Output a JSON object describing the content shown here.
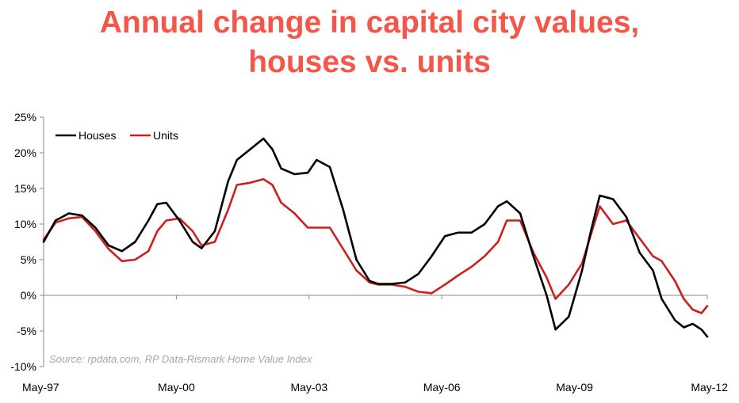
{
  "title_line1": "Annual change in capital city values,",
  "title_line2": "houses vs. units",
  "colors": {
    "title": "#f2574a",
    "houses": "#000000",
    "units": "#cc1f1f",
    "source": "#a6a6a6"
  },
  "chart_data": {
    "type": "line",
    "title": "Annual change in capital city values, houses vs. units",
    "xlabel": "",
    "ylabel": "",
    "y_ticks": [
      "25%",
      "20%",
      "15%",
      "10%",
      "5%",
      "0%",
      "-5%",
      "-10%"
    ],
    "x_ticks": [
      "May-97",
      "May-00",
      "May-03",
      "May-06",
      "May-09",
      "May-12"
    ],
    "ylim": [
      -10,
      25
    ],
    "xlim": [
      1997.33,
      2012.33
    ],
    "grid": false,
    "legend_position": "top-left",
    "source": "Source: rpdata.com, RP Data-Rismark Home Value Index",
    "series": [
      {
        "name": "Houses",
        "x": [
          1997.33,
          1997.6,
          1997.9,
          1998.2,
          1998.5,
          1998.8,
          1999.1,
          1999.4,
          1999.7,
          1999.9,
          2000.1,
          2000.4,
          2000.7,
          2000.9,
          2001.2,
          2001.5,
          2001.7,
          2002.0,
          2002.3,
          2002.5,
          2002.7,
          2003.0,
          2003.3,
          2003.5,
          2003.8,
          2004.1,
          2004.4,
          2004.7,
          2004.9,
          2005.2,
          2005.5,
          2005.8,
          2006.1,
          2006.4,
          2006.7,
          2007.0,
          2007.3,
          2007.6,
          2007.8,
          2008.1,
          2008.4,
          2008.7,
          2008.9,
          2009.2,
          2009.5,
          2009.7,
          2009.9,
          2010.2,
          2010.5,
          2010.8,
          2011.1,
          2011.3,
          2011.6,
          2011.8,
          2012.0,
          2012.2,
          2012.33
        ],
        "y": [
          7.5,
          10.5,
          11.5,
          11.2,
          9.5,
          7.0,
          6.2,
          7.5,
          10.5,
          12.8,
          13.0,
          10.5,
          7.5,
          6.6,
          9.0,
          16.0,
          19.0,
          20.5,
          22.0,
          20.5,
          17.8,
          17.0,
          17.2,
          19.0,
          18.0,
          12.0,
          5.0,
          2.0,
          1.6,
          1.6,
          1.8,
          3.0,
          5.5,
          8.3,
          8.8,
          8.8,
          10.0,
          12.5,
          13.2,
          11.5,
          5.5,
          0.0,
          -4.8,
          -3.0,
          3.5,
          9.0,
          14.0,
          13.5,
          11.0,
          6.0,
          3.5,
          -0.5,
          -3.5,
          -4.5,
          -4.0,
          -4.8,
          -5.8
        ]
      },
      {
        "name": "Units",
        "x": [
          1997.33,
          1997.6,
          1997.9,
          1998.2,
          1998.5,
          1998.8,
          1999.1,
          1999.4,
          1999.7,
          1999.9,
          2000.1,
          2000.4,
          2000.7,
          2000.9,
          2001.2,
          2001.5,
          2001.7,
          2002.0,
          2002.3,
          2002.5,
          2002.7,
          2003.0,
          2003.3,
          2003.5,
          2003.8,
          2004.1,
          2004.4,
          2004.7,
          2004.9,
          2005.2,
          2005.5,
          2005.8,
          2006.1,
          2006.4,
          2006.7,
          2007.0,
          2007.3,
          2007.6,
          2007.8,
          2008.1,
          2008.4,
          2008.7,
          2008.9,
          2009.2,
          2009.5,
          2009.7,
          2009.9,
          2010.2,
          2010.5,
          2010.8,
          2011.1,
          2011.3,
          2011.6,
          2011.8,
          2012.0,
          2012.2,
          2012.33
        ],
        "y": [
          7.8,
          10.2,
          10.8,
          11.0,
          9.0,
          6.5,
          4.8,
          5.0,
          6.2,
          9.0,
          10.5,
          10.8,
          9.0,
          7.0,
          7.5,
          12.0,
          15.5,
          15.8,
          16.3,
          15.5,
          13.0,
          11.5,
          9.5,
          9.5,
          9.5,
          6.5,
          3.5,
          1.8,
          1.5,
          1.5,
          1.2,
          0.5,
          0.3,
          1.5,
          2.8,
          4.0,
          5.5,
          7.5,
          10.5,
          10.5,
          6.0,
          2.5,
          -0.5,
          1.5,
          4.5,
          8.5,
          12.5,
          10.0,
          10.5,
          8.0,
          5.5,
          4.8,
          2.0,
          -0.5,
          -2.0,
          -2.5,
          -1.5
        ]
      }
    ]
  }
}
